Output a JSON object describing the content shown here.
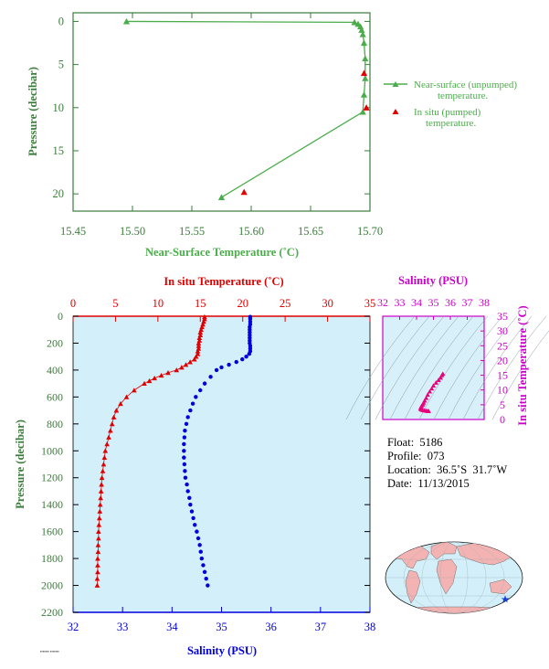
{
  "chart_data": [
    {
      "type": "line",
      "xlabel": "Near-Surface Temperature (˚C)",
      "ylabel": "Pressure (decibar)",
      "xlim": [
        15.45,
        15.7
      ],
      "ylim": [
        22,
        -1
      ],
      "x_ticks": [
        "15.45",
        "15.50",
        "15.55",
        "15.60",
        "15.65",
        "15.70"
      ],
      "y_ticks": [
        "0",
        "5",
        "10",
        "15",
        "20"
      ],
      "legend_position": "right",
      "series": [
        {
          "name": "Near-surface (unpumped) temperature.",
          "color": "#4aad4a",
          "marker": "triangle",
          "points": [
            [
              15.495,
              0
            ],
            [
              15.687,
              0.1
            ],
            [
              15.69,
              0.3
            ],
            [
              15.692,
              0.6
            ],
            [
              15.693,
              1.0
            ],
            [
              15.694,
              1.5
            ],
            [
              15.695,
              2.5
            ],
            [
              15.696,
              4.3
            ],
            [
              15.696,
              6.6
            ],
            [
              15.695,
              8.5
            ],
            [
              15.694,
              10.5
            ],
            [
              15.575,
              20.4
            ]
          ]
        },
        {
          "name": "In situ (pumped) temperature.",
          "color": "#e00000",
          "marker": "triangle",
          "points": [
            [
              15.695,
              6.0
            ],
            [
              15.697,
              10.0
            ],
            [
              15.594,
              19.8
            ]
          ]
        }
      ]
    },
    {
      "type": "line",
      "top_xlabel": "In situ Temperature (˚C)",
      "bottom_xlabel": "Salinity (PSU)",
      "ylabel": "Pressure (decibar)",
      "temp_lim": [
        0,
        35
      ],
      "sal_lim": [
        32,
        38
      ],
      "ylim": [
        2200,
        0
      ],
      "temp_ticks": [
        "0",
        "5",
        "10",
        "15",
        "20",
        "25",
        "30",
        "35"
      ],
      "sal_ticks": [
        "32",
        "33",
        "34",
        "35",
        "36",
        "37",
        "38"
      ],
      "y_ticks": [
        "0",
        "200",
        "400",
        "600",
        "800",
        "1000",
        "1200",
        "1400",
        "1600",
        "1800",
        "2000",
        "2200"
      ],
      "series": [
        {
          "name": "In situ Temperature (˚C)",
          "color": "#e00000",
          "marker": "triangle",
          "pressure": [
            5,
            20,
            40,
            60,
            80,
            100,
            120,
            140,
            160,
            180,
            200,
            220,
            240,
            260,
            280,
            300,
            320,
            340,
            360,
            380,
            400,
            420,
            440,
            460,
            480,
            500,
            550,
            600,
            650,
            700,
            750,
            800,
            850,
            900,
            950,
            1000,
            1050,
            1100,
            1150,
            1200,
            1250,
            1300,
            1350,
            1400,
            1450,
            1500,
            1550,
            1600,
            1650,
            1700,
            1750,
            1800,
            1850,
            1900,
            1950,
            2000
          ],
          "values": [
            15.5,
            15.5,
            15.4,
            15.3,
            15.2,
            15.1,
            15.0,
            15.0,
            14.9,
            14.9,
            14.8,
            14.8,
            14.8,
            14.7,
            14.7,
            14.5,
            14.3,
            13.8,
            13.3,
            12.8,
            12.2,
            11.2,
            10.4,
            9.6,
            9.0,
            8.4,
            7.2,
            6.3,
            5.6,
            5.1,
            4.8,
            4.6,
            4.4,
            4.2,
            4.0,
            3.8,
            3.7,
            3.6,
            3.5,
            3.4,
            3.35,
            3.3,
            3.25,
            3.2,
            3.15,
            3.1,
            3.05,
            3.0,
            3.0,
            2.95,
            2.95,
            2.9,
            2.9,
            2.9,
            2.85,
            2.85
          ]
        },
        {
          "name": "Salinity (PSU)",
          "color": "#0000dd",
          "marker": "circle",
          "pressure": [
            5,
            20,
            40,
            60,
            80,
            100,
            120,
            140,
            160,
            180,
            200,
            220,
            240,
            260,
            280,
            300,
            320,
            340,
            360,
            380,
            400,
            450,
            500,
            550,
            600,
            650,
            700,
            750,
            800,
            850,
            900,
            950,
            1000,
            1050,
            1100,
            1150,
            1200,
            1250,
            1300,
            1350,
            1400,
            1450,
            1500,
            1550,
            1600,
            1650,
            1700,
            1750,
            1800,
            1850,
            1900,
            1950,
            2000
          ],
          "values": [
            35.58,
            35.58,
            35.58,
            35.58,
            35.57,
            35.57,
            35.57,
            35.57,
            35.57,
            35.57,
            35.57,
            35.58,
            35.58,
            35.58,
            35.56,
            35.5,
            35.42,
            35.3,
            35.15,
            35.0,
            34.9,
            34.78,
            34.66,
            34.57,
            34.48,
            34.42,
            34.37,
            34.32,
            34.29,
            34.26,
            34.25,
            34.24,
            34.24,
            34.24,
            34.25,
            34.26,
            34.27,
            34.3,
            34.32,
            34.35,
            34.37,
            34.4,
            34.43,
            34.46,
            34.5,
            34.53,
            34.56,
            34.58,
            34.6,
            34.63,
            34.66,
            34.69,
            34.72
          ]
        }
      ]
    },
    {
      "type": "scatter",
      "title": "Salinity (PSU)",
      "ylabel": "In situ Temperature (˚C)",
      "xlim": [
        32,
        38
      ],
      "ylim": [
        0,
        35
      ],
      "x_ticks": [
        "32",
        "33",
        "34",
        "35",
        "36",
        "37",
        "38"
      ],
      "y_ticks": [
        "0",
        "5",
        "10",
        "15",
        "20",
        "25",
        "30",
        "35"
      ],
      "color": "#e8007a",
      "points": [
        [
          35.56,
          15.5
        ],
        [
          35.5,
          15.0
        ],
        [
          35.42,
          14.2
        ],
        [
          35.3,
          13.4
        ],
        [
          35.15,
          12.5
        ],
        [
          35.0,
          11.5
        ],
        [
          34.9,
          10.5
        ],
        [
          34.78,
          9.5
        ],
        [
          34.66,
          8.4
        ],
        [
          34.57,
          7.3
        ],
        [
          34.48,
          6.4
        ],
        [
          34.42,
          5.7
        ],
        [
          34.37,
          5.1
        ],
        [
          34.3,
          4.6
        ],
        [
          34.26,
          4.2
        ],
        [
          34.24,
          3.9
        ],
        [
          34.25,
          3.6
        ],
        [
          34.3,
          3.4
        ],
        [
          34.37,
          3.2
        ],
        [
          34.46,
          3.1
        ],
        [
          34.56,
          3.0
        ],
        [
          34.66,
          2.9
        ],
        [
          34.72,
          2.85
        ]
      ]
    }
  ],
  "legend": {
    "unpumped_line1": "Near-surface (unpumped)",
    "unpumped_line2": "temperature.",
    "pumped_line1": "In situ (pumped)",
    "pumped_line2": "temperature."
  },
  "float_info": {
    "float": "Float:  5186",
    "profile": "Profile:  073",
    "location": "Location:  36.5˚S  31.7˚W",
    "date": "Date:  11/13/2015"
  },
  "map": {
    "marker_lon": -31.7,
    "marker_lat": -36.5,
    "marker_color": "#1a3fd6"
  },
  "colors": {
    "top_axis": "#3b7d3b",
    "label_green": "#4aad4a",
    "temp_red": "#e00000",
    "sal_blue": "#0000dd",
    "ts_magenta": "#cc00cc",
    "panel_fill": "#d2effa",
    "ts_fill": "#d8f0fa"
  }
}
